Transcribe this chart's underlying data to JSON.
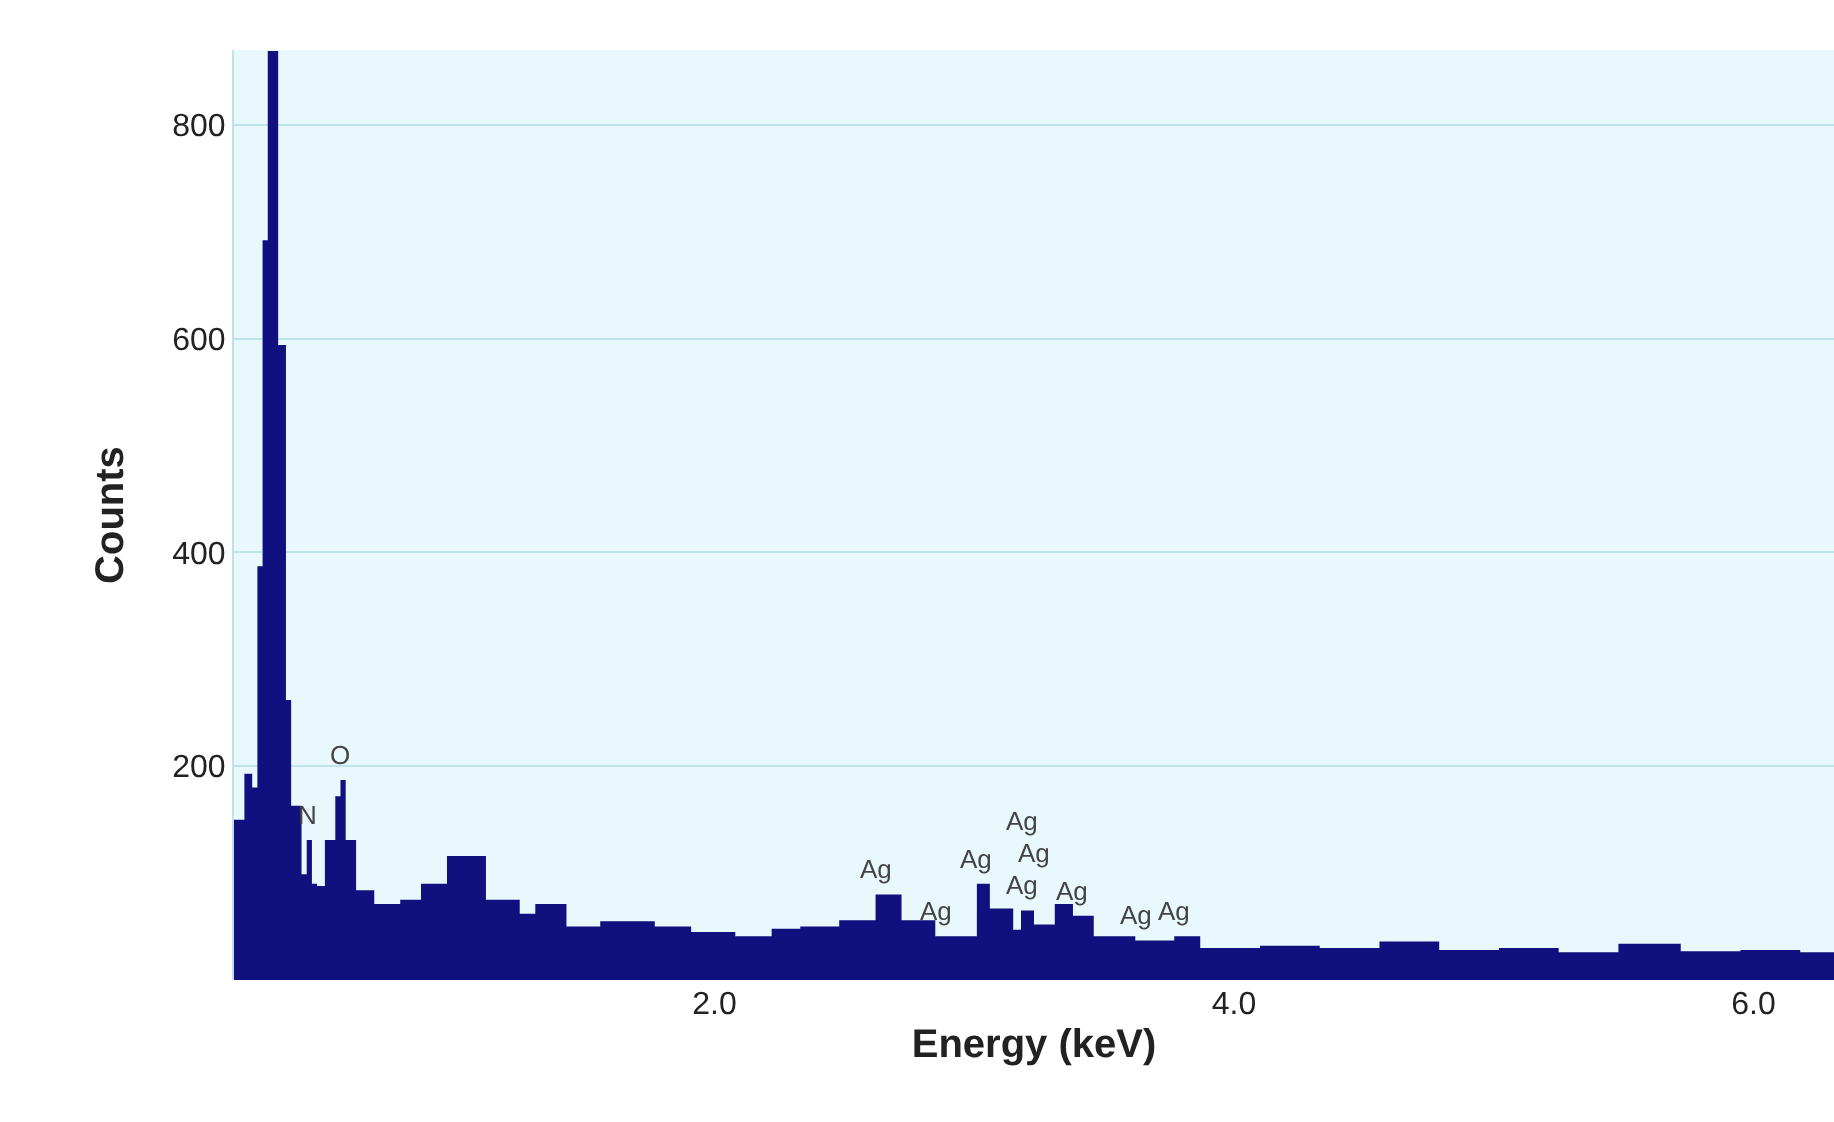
{
  "chart_data": {
    "type": "area",
    "xlabel": "Energy (keV)",
    "ylabel": "Counts",
    "x": [
      0.15,
      0.19,
      0.22,
      0.24,
      0.26,
      0.28,
      0.32,
      0.35,
      0.37,
      0.41,
      0.43,
      0.45,
      0.47,
      0.5,
      0.54,
      0.56,
      0.58,
      0.62,
      0.69,
      0.79,
      0.87,
      0.97,
      1.06,
      1.12,
      1.25,
      1.31,
      1.43,
      1.56,
      1.77,
      1.91,
      2.08,
      2.22,
      2.33,
      2.48,
      2.62,
      2.72,
      2.85,
      3.01,
      3.06,
      3.15,
      3.18,
      3.23,
      3.31,
      3.38,
      3.46,
      3.62,
      3.77,
      3.87,
      4.1,
      4.33,
      4.56,
      4.79,
      5.02,
      5.25,
      5.48,
      5.72,
      5.95,
      6.18,
      6.31
    ],
    "values": [
      150,
      193,
      180,
      387,
      692,
      869,
      594,
      262,
      163,
      99,
      131,
      90,
      88,
      131,
      172,
      187,
      131,
      84,
      71,
      75,
      90,
      116,
      116,
      75,
      62,
      71,
      50,
      55,
      50,
      45,
      41,
      48,
      50,
      56,
      80,
      56,
      41,
      90,
      67,
      47,
      65,
      52,
      71,
      60,
      41,
      37,
      41,
      30,
      32,
      30,
      36,
      28,
      30,
      26,
      34,
      27,
      28,
      26,
      25
    ],
    "color": "#10107f",
    "xlim": [
      0.15,
      6.31
    ],
    "xticks": [
      {
        "value": 2,
        "label": "2.0"
      },
      {
        "value": 4,
        "label": "4.0"
      },
      {
        "value": 6,
        "label": "6.0"
      }
    ],
    "ylim": [
      0,
      870
    ],
    "yticks": [
      200,
      400,
      600,
      800
    ],
    "grid": "y",
    "annotations": [
      {
        "text": "N",
        "x": 0.43,
        "y": 131
      },
      {
        "text": "O",
        "x": 0.56,
        "y": 187
      },
      {
        "text": "Ag",
        "x": 2.62,
        "y": 80
      },
      {
        "text": "Ag",
        "x": 2.85,
        "y": 41
      },
      {
        "text": "Ag",
        "x": 3.01,
        "y": 90
      },
      {
        "text": "Ag",
        "x": 3.18,
        "y": 65
      },
      {
        "text": "Ag",
        "x": 3.23,
        "y": 52
      },
      {
        "text": "Ag",
        "x": 3.18,
        "y": 65
      },
      {
        "text": "Ag",
        "x": 3.38,
        "y": 60
      },
      {
        "text": "Ag",
        "x": 3.62,
        "y": 37
      },
      {
        "text": "Ag",
        "x": 3.77,
        "y": 41
      }
    ]
  }
}
